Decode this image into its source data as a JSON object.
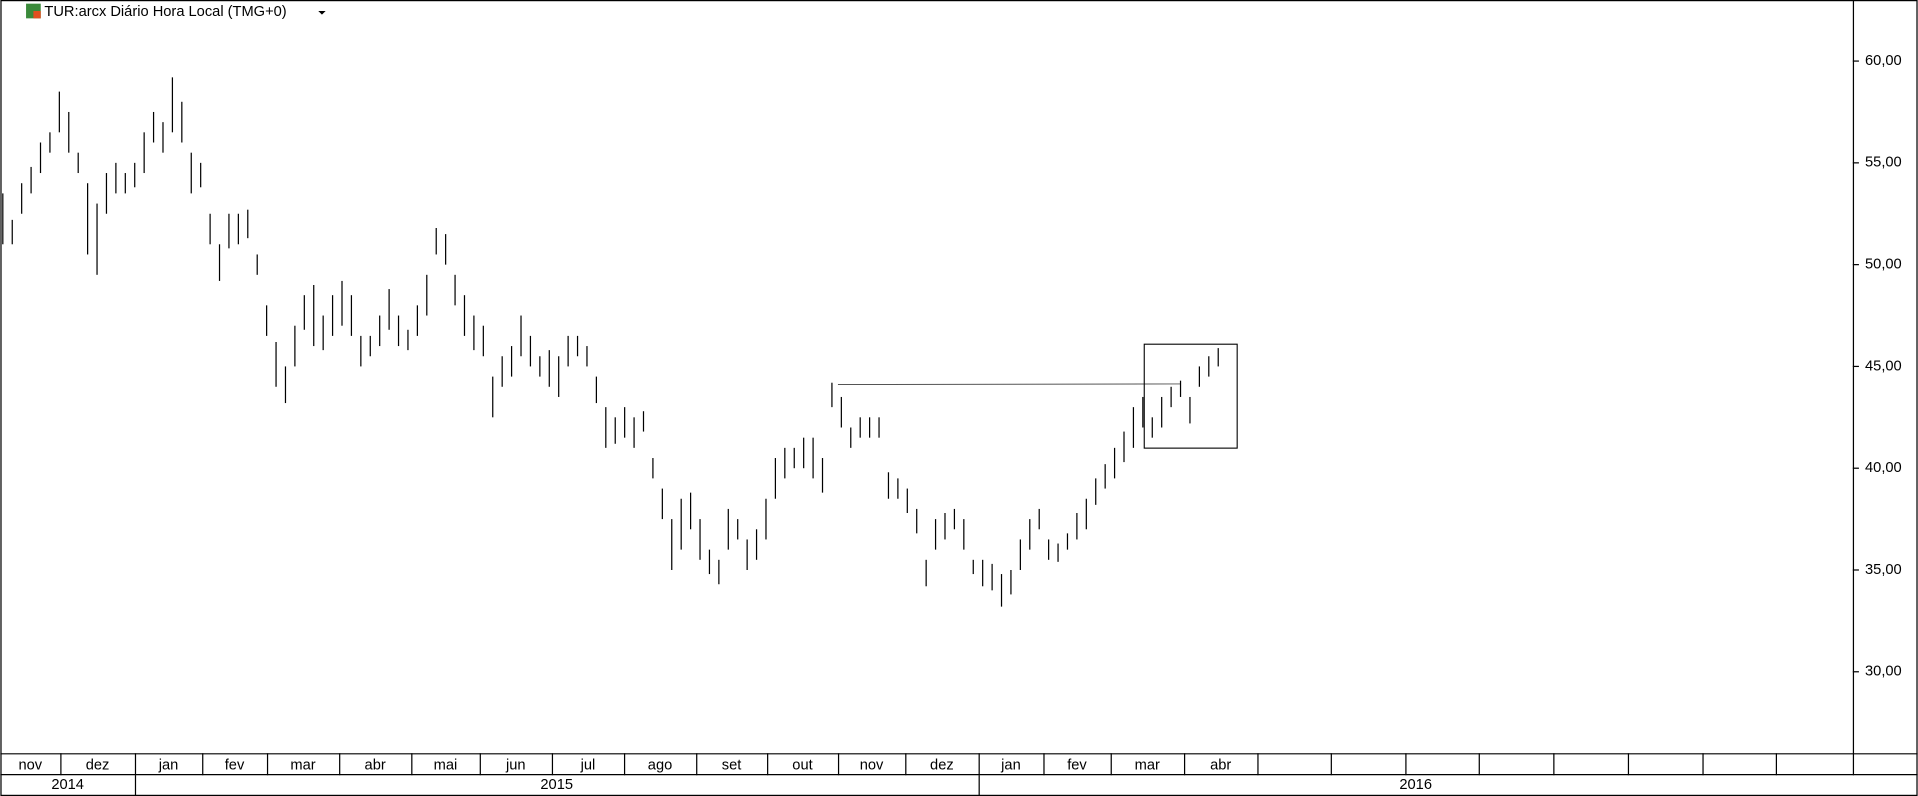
{
  "chart_data": {
    "type": "ohlc",
    "title": "TUR:arcx Diário Hora Local (TMG+0)",
    "color": "#000000",
    "high": [
      53.5,
      52.2,
      54.0,
      54.8,
      56.0,
      56.5,
      58.5,
      57.5,
      55.5,
      54.0,
      53.0,
      54.5,
      55.0,
      54.5,
      55.0,
      56.5,
      57.5,
      57.0,
      59.2,
      58.0,
      55.5,
      55.0,
      52.5,
      51.0,
      52.5,
      52.5,
      52.7,
      50.5,
      48.0,
      46.2,
      45.0,
      47.0,
      48.5,
      49.0,
      47.5,
      48.5,
      49.2,
      48.5,
      46.5,
      46.5,
      47.5,
      48.8,
      47.5,
      46.8,
      48.0,
      49.5,
      51.8,
      51.5,
      49.5,
      48.5,
      47.5,
      47.0,
      44.5,
      45.5,
      46.0,
      47.5,
      46.5,
      45.5,
      45.8,
      45.5,
      46.5,
      46.5,
      46.0,
      44.5,
      43.0,
      42.5,
      43.0,
      42.5,
      42.8,
      40.5,
      39.0,
      37.5,
      38.5,
      38.8,
      37.5,
      36.0,
      35.5,
      38.0,
      37.5,
      36.5,
      37.0,
      38.5,
      40.5,
      41.0,
      41.0,
      41.5,
      41.5,
      40.5,
      44.2,
      43.5,
      42.0,
      42.5,
      42.5,
      42.5,
      39.8,
      39.5,
      39.0,
      38.0,
      35.5,
      37.5,
      37.8,
      38.0,
      37.5,
      35.5,
      35.5,
      35.3,
      34.8,
      35.0,
      36.5,
      37.5,
      38.0,
      36.5,
      36.3,
      36.8,
      37.8,
      38.5,
      39.5,
      40.2,
      41.0,
      41.8,
      43.0,
      43.5,
      42.5,
      43.5,
      44.0,
      44.3,
      43.5,
      45.0,
      45.5,
      45.9
    ],
    "low": [
      51.0,
      51.0,
      52.5,
      53.5,
      54.5,
      55.5,
      56.5,
      55.5,
      54.5,
      50.5,
      49.5,
      52.5,
      53.5,
      53.5,
      53.8,
      54.5,
      56.0,
      55.5,
      56.5,
      56.0,
      53.5,
      53.8,
      51.0,
      49.2,
      50.8,
      51.0,
      51.3,
      49.5,
      46.5,
      44.0,
      43.2,
      45.0,
      46.8,
      46.0,
      45.8,
      46.5,
      47.0,
      46.5,
      45.0,
      45.5,
      46.0,
      46.8,
      46.0,
      45.8,
      46.5,
      47.5,
      50.5,
      50.0,
      48.0,
      46.5,
      45.8,
      45.5,
      42.5,
      44.0,
      44.5,
      45.5,
      45.0,
      44.5,
      44.0,
      43.5,
      45.0,
      45.5,
      45.0,
      43.2,
      41.0,
      41.2,
      41.5,
      41.0,
      41.8,
      39.5,
      37.5,
      35.0,
      36.0,
      37.0,
      35.5,
      34.8,
      34.3,
      36.0,
      36.5,
      35.0,
      35.5,
      36.5,
      38.5,
      39.5,
      40.0,
      40.0,
      39.5,
      38.8,
      43.0,
      42.0,
      41.0,
      41.5,
      41.5,
      41.5,
      38.5,
      38.5,
      37.8,
      36.8,
      34.2,
      36.0,
      36.5,
      37.0,
      36.0,
      34.8,
      34.2,
      34.0,
      33.2,
      33.8,
      35.0,
      36.0,
      37.0,
      35.5,
      35.4,
      36.0,
      36.5,
      37.0,
      38.2,
      39.0,
      39.5,
      40.3,
      41.0,
      42.0,
      41.5,
      42.0,
      43.0,
      43.5,
      42.2,
      44.0,
      44.5,
      45.0
    ],
    "ylim": [
      26,
      63
    ],
    "yticks": [
      {
        "value": 30,
        "label": "30,00"
      },
      {
        "value": 35,
        "label": "35,00"
      },
      {
        "value": 40,
        "label": "40,00"
      },
      {
        "value": 45,
        "label": "45,00"
      },
      {
        "value": 50,
        "label": "50,00"
      },
      {
        "value": 55,
        "label": "55,00"
      },
      {
        "value": 60,
        "label": "60,00"
      }
    ],
    "months": [
      "nov",
      "dez",
      "jan",
      "fev",
      "mar",
      "abr",
      "mai",
      "jun",
      "jul",
      "ago",
      "set",
      "out",
      "nov",
      "dez",
      "jan",
      "fev",
      "mar",
      "abr",
      null,
      null,
      null,
      null,
      null,
      null,
      null,
      null
    ],
    "years": [
      "2014",
      "2015",
      "2016"
    ]
  }
}
